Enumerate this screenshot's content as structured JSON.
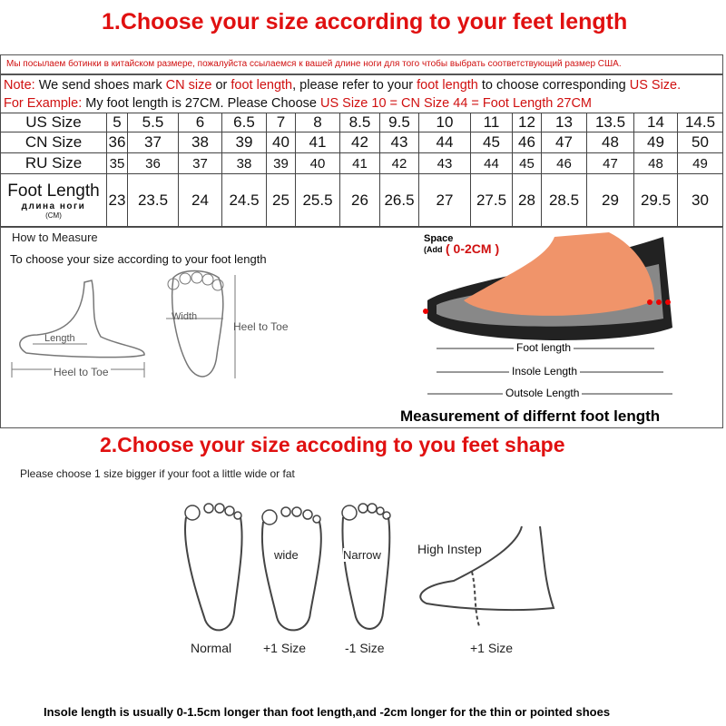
{
  "title1": "1.Choose your size according to your feet length",
  "russian_note": "Мы посылаем ботинки в китайском размере, пожалуйста ссылаемся к вашей длине ноги для того чтобы выбрать соответствующий размер США.",
  "note": {
    "prefix": "Note:",
    "t1": " We send shoes mark ",
    "cn": "CN size",
    "t2": " or ",
    "fl": "foot length",
    "t3": ", please refer to your ",
    "fl2": "foot length",
    "t4": " to choose corresponding ",
    "us": "US Size."
  },
  "example": {
    "prefix": "For Example:",
    "t1": " My foot length is 27CM. Please Choose ",
    "red": "US Size 10 = CN Size 44 = Foot Length 27CM"
  },
  "table": {
    "rows": [
      {
        "label": "US Size",
        "values": [
          "5",
          "5.5",
          "6",
          "6.5",
          "7",
          "8",
          "8.5",
          "9.5",
          "10",
          "11",
          "12",
          "13",
          "13.5",
          "14",
          "14.5"
        ]
      },
      {
        "label": "CN Size",
        "values": [
          "36",
          "37",
          "38",
          "39",
          "40",
          "41",
          "42",
          "43",
          "44",
          "45",
          "46",
          "47",
          "48",
          "49",
          "50"
        ]
      },
      {
        "label": "RU Size",
        "values": [
          "35",
          "36",
          "37",
          "38",
          "39",
          "40",
          "41",
          "42",
          "43",
          "44",
          "45",
          "46",
          "47",
          "48",
          "49"
        ]
      },
      {
        "label": "Foot Length",
        "sublabel": "длина ноги",
        "unit": "(CM)",
        "values": [
          "23",
          "23.5",
          "24",
          "24.5",
          "25",
          "25.5",
          "26",
          "26.5",
          "27",
          "27.5",
          "28",
          "28.5",
          "29",
          "29.5",
          "30"
        ]
      }
    ]
  },
  "measure": {
    "heading": "How to Measure",
    "sub": "To choose your size according to your foot length",
    "length": "Length",
    "heel_to_toe": "Heel to Toe",
    "width": "Width",
    "heel_to_toe2": "Heel to Toe"
  },
  "diagram": {
    "space": "Space",
    "add": "(Add",
    "range": "( 0-2CM )",
    "foot_length": "Foot length",
    "insole_length": "Insole Length",
    "outsole_length": "Outsole Length",
    "caption": "Measurement of differnt foot length"
  },
  "title2": "2.Choose your size accoding to you feet shape",
  "shape_note": "Please choose 1 size bigger if your foot a little wide or fat",
  "shapes": [
    {
      "label": "Normal"
    },
    {
      "label": "+1 Size",
      "tag": "wide"
    },
    {
      "label": "-1 Size",
      "tag": "Narrow"
    },
    {
      "label": "+1 Size",
      "tag": "High Instep"
    }
  ],
  "footer": "Insole length is usually 0-1.5cm longer than foot length,and -2cm longer for the thin or pointed shoes"
}
